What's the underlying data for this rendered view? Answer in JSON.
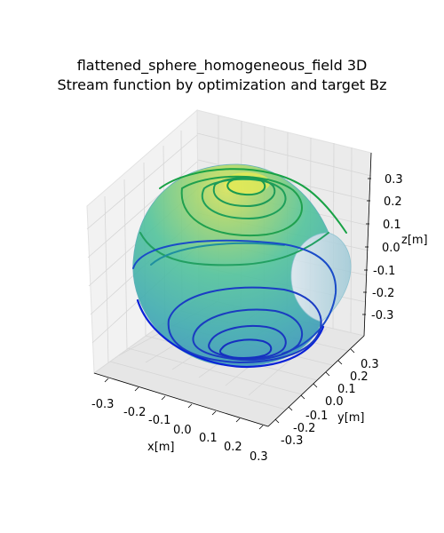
{
  "chart_data": {
    "type": "surface3d",
    "title": "flattened_sphere_homogeneous_field 3D",
    "subtitle": "Stream function by optimization and target Bz",
    "xlabel": "x[m]",
    "ylabel": "y[m]",
    "zlabel": "z[m]",
    "xlim": [
      -0.35,
      0.35
    ],
    "ylim": [
      -0.35,
      0.35
    ],
    "zlim": [
      -0.35,
      0.35
    ],
    "x_ticks": [
      "-0.3",
      "-0.2",
      "-0.1",
      "0.0",
      "0.1",
      "0.2",
      "0.3"
    ],
    "y_ticks": [
      "-0.3",
      "-0.2",
      "-0.1",
      "0.0",
      "0.1",
      "0.2",
      "0.3"
    ],
    "z_ticks": [
      "0.3",
      "0.2",
      "0.1",
      "0.0",
      "-0.1",
      "-0.2",
      "-0.3"
    ],
    "grid": true,
    "surface": "flattened sphere, viridis colormap, semi-transparent",
    "contour_colors": [
      "#0a20d0",
      "#1a52c8",
      "#1f8fa8",
      "#23a060",
      "#1aa040"
    ],
    "colors": {
      "surface_top": "#d4e25a",
      "surface_mid": "#4cc3a2",
      "surface_bottom": "#3a98b8",
      "pane": "#f2f2f2",
      "grid": "#d8d8d8"
    }
  }
}
